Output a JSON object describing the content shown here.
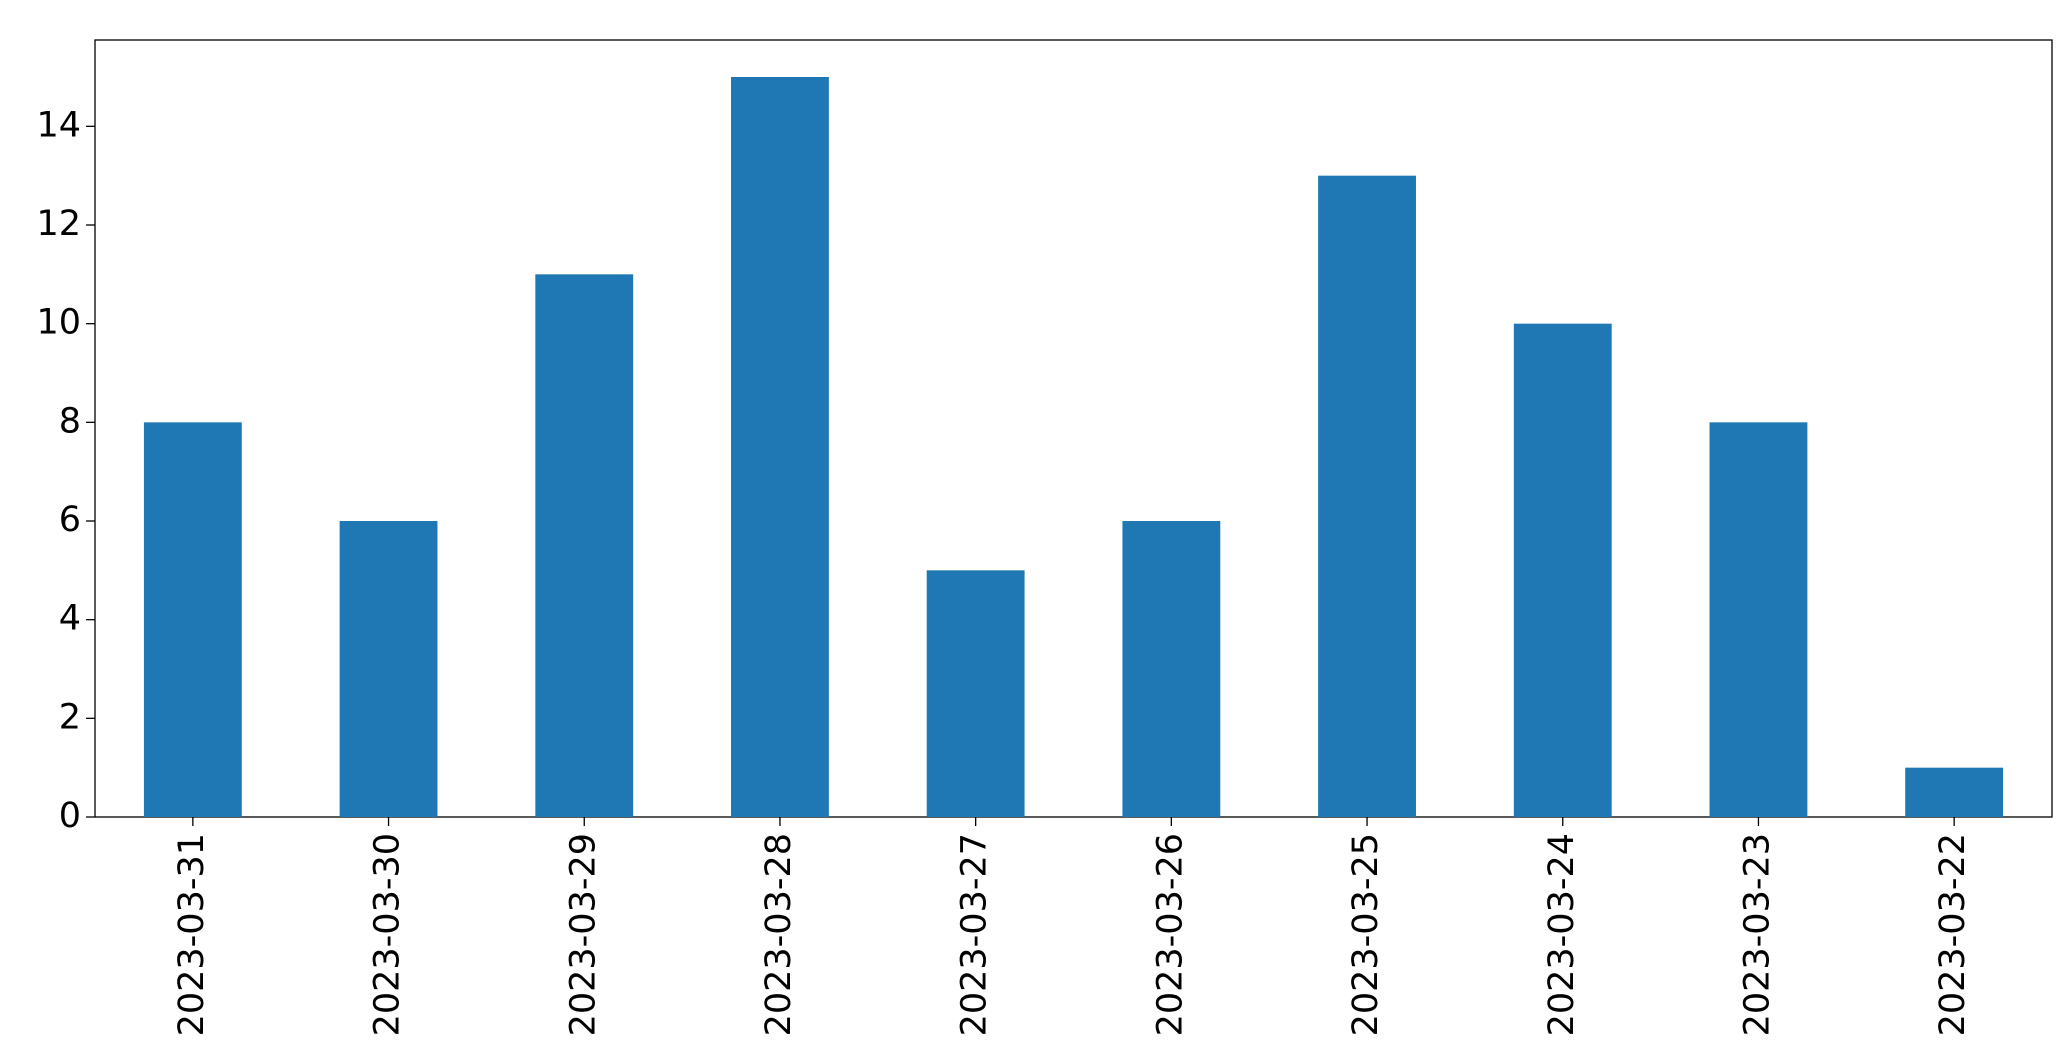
{
  "chart_data": {
    "type": "bar",
    "categories": [
      "2023-03-31",
      "2023-03-30",
      "2023-03-29",
      "2023-03-28",
      "2023-03-27",
      "2023-03-26",
      "2023-03-25",
      "2023-03-24",
      "2023-03-23",
      "2023-03-22"
    ],
    "values": [
      8,
      6,
      11,
      15,
      5,
      6,
      13,
      10,
      8,
      1
    ],
    "color": "#1f77b4",
    "ylim": [
      0,
      15.75
    ],
    "yticks": [
      0,
      2,
      4,
      6,
      8,
      10,
      12,
      14
    ],
    "grid": false
  }
}
